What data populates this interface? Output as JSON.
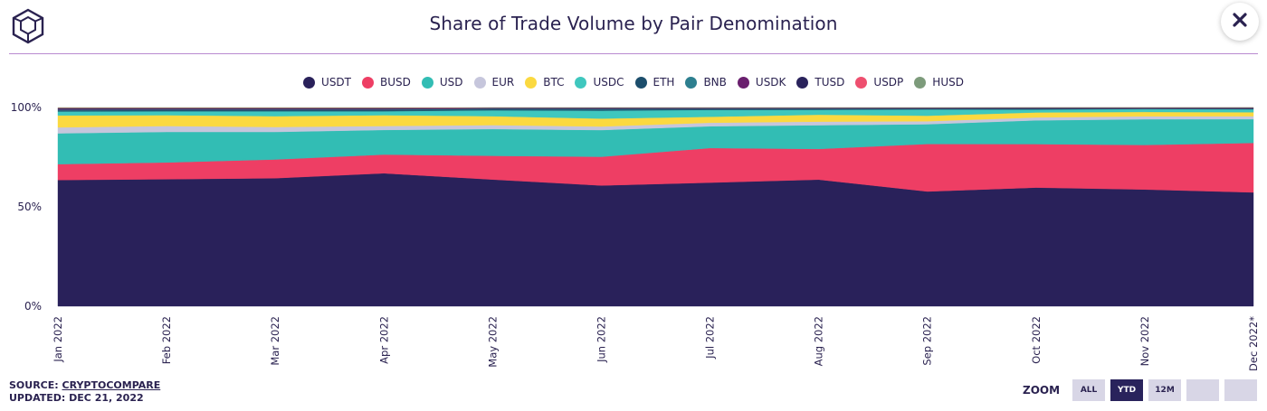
{
  "title": "Share of Trade Volume by Pair Denomination",
  "source": {
    "prefix": "SOURCE: ",
    "link": "CRYPTOCOMPARE",
    "updated": "UPDATED: DEC 21, 2022"
  },
  "zoom": {
    "label": "ZOOM",
    "buttons": [
      {
        "label": "ALL",
        "active": false
      },
      {
        "label": "YTD",
        "active": true
      },
      {
        "label": "12M",
        "active": false
      },
      {
        "label": "",
        "active": false
      },
      {
        "label": "",
        "active": false
      }
    ]
  },
  "icons": {
    "logo": "cube-logo-icon",
    "close": "close-icon"
  },
  "chart_data": {
    "type": "area",
    "stacked": true,
    "normalized": true,
    "x": [
      "Jan 2022",
      "Feb 2022",
      "Mar 2022",
      "Apr 2022",
      "May 2022",
      "Jun 2022",
      "Jul 2022",
      "Aug 2022",
      "Sep 2022",
      "Oct 2022",
      "Nov 2022",
      "Dec 2022*"
    ],
    "ylim": [
      0,
      100
    ],
    "yticks": [
      {
        "value": 0,
        "label": "0%"
      },
      {
        "value": 50,
        "label": "50%"
      },
      {
        "value": 100,
        "label": "100%"
      }
    ],
    "legend_position": "top",
    "grid": false,
    "series": [
      {
        "name": "USDT",
        "color": "#29215a",
        "values": [
          63.5,
          64.5,
          65,
          67.5,
          64,
          61,
          62.5,
          64,
          58,
          60,
          59,
          57.5
        ]
      },
      {
        "name": "BUSD",
        "color": "#ee3e64",
        "values": [
          8,
          8.5,
          9.5,
          9.5,
          12,
          14.5,
          17.5,
          15.5,
          24,
          22,
          22.5,
          25
        ]
      },
      {
        "name": "USD",
        "color": "#32bdb4",
        "values": [
          15.5,
          15.5,
          14,
          12.5,
          13.5,
          13.5,
          11,
          12,
          10,
          12,
          13,
          12
        ]
      },
      {
        "name": "EUR",
        "color": "#c6c6dc",
        "values": [
          3,
          3,
          2.5,
          2,
          2,
          1.8,
          1.8,
          1.8,
          1.5,
          1.5,
          1.5,
          1.5
        ]
      },
      {
        "name": "BTC",
        "color": "#fbd940",
        "values": [
          6,
          5.5,
          5.5,
          5.5,
          4.5,
          4,
          3,
          3.5,
          2.8,
          2.5,
          2.2,
          2
        ]
      },
      {
        "name": "USDC",
        "color": "#3fc7be",
        "values": [
          2,
          2,
          2.5,
          2,
          3,
          4,
          3.5,
          2.5,
          3.2,
          1.5,
          1.5,
          1.5
        ]
      },
      {
        "name": "ETH",
        "color": "#1c4e6c",
        "values": [
          0.6,
          0.6,
          0.6,
          0.6,
          0.5,
          0.5,
          0.4,
          0.4,
          0.3,
          0.3,
          0.2,
          0.3
        ]
      },
      {
        "name": "BNB",
        "color": "#2d7f8f",
        "values": [
          0.3,
          0.3,
          0.3,
          0.3,
          0.3,
          0.4,
          0.2,
          0.2,
          0.1,
          0.1,
          0.05,
          0.1
        ]
      },
      {
        "name": "USDK",
        "color": "#6a1f6e",
        "values": [
          0.3,
          0.2,
          0.2,
          0.2,
          0.1,
          0.1,
          0.1,
          0.05,
          0.05,
          0.05,
          0.05,
          0.05
        ]
      },
      {
        "name": "TUSD",
        "color": "#2a235c",
        "values": [
          0.4,
          0.4,
          0.4,
          0.4,
          0.3,
          0.4,
          0.3,
          0.3,
          0.3,
          0.4,
          0.3,
          0.3
        ]
      },
      {
        "name": "USDP",
        "color": "#ee4f6f",
        "values": [
          0.2,
          0.2,
          0.2,
          0.2,
          0.1,
          0.1,
          0.1,
          0.1,
          0.1,
          0.1,
          0.1,
          0.1
        ]
      },
      {
        "name": "HUSD",
        "color": "#7d9b7b",
        "values": [
          0.2,
          0.2,
          0.2,
          0.2,
          0.1,
          0.1,
          0.1,
          0.1,
          0.1,
          0.05,
          0.05,
          0.05
        ]
      }
    ]
  }
}
